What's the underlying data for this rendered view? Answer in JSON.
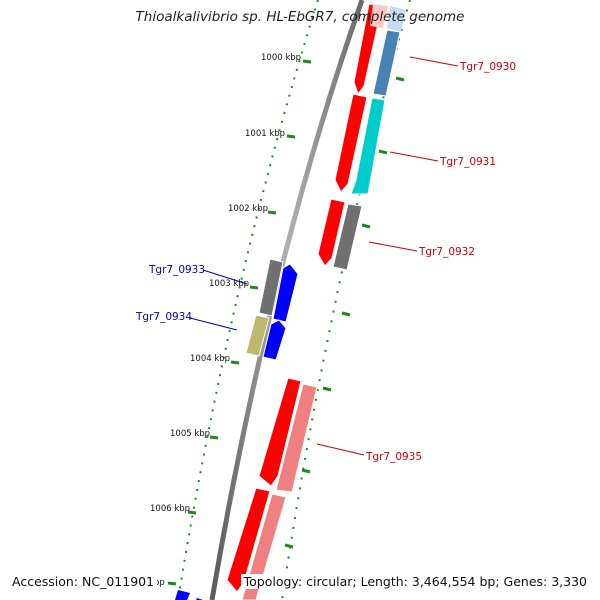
{
  "title": "Thioalkalivibrio sp. HL-EbGR7, complete genome",
  "accession": "Accession: NC_011901",
  "topology": "Topology: circular; Length: 3,464,554 bp; Genes: 3,330",
  "kbp_labels": [
    "1000 kbp",
    "1001 kbp",
    "1002 kbp",
    "1003 kbp",
    "1004 kbp",
    "1005 kbp",
    "1006 kbp",
    "kbp"
  ],
  "colors": {
    "backbone": "#808080",
    "tick": "#1a8a1a",
    "forward_label": "#cc0000",
    "reverse_label": "#0000aa",
    "red": "#ff0000",
    "pink": "#f08080",
    "light_pink": "#ffc8c8",
    "steel_blue": "#4682b4",
    "light_steel_blue": "#c8dcf0",
    "cyan": "#00cccc",
    "gray": "#707070",
    "blue": "#0000ff",
    "khaki": "#bdb76b"
  },
  "gene_labels": [
    {
      "text": "Tgr7_0930",
      "strand": "forward"
    },
    {
      "text": "Tgr7_0931",
      "strand": "forward"
    },
    {
      "text": "Tgr7_0932",
      "strand": "forward"
    },
    {
      "text": "Tgr7_0933",
      "strand": "reverse"
    },
    {
      "text": "Tgr7_0934",
      "strand": "reverse"
    },
    {
      "text": "Tgr7_0935",
      "strand": "forward"
    }
  ]
}
